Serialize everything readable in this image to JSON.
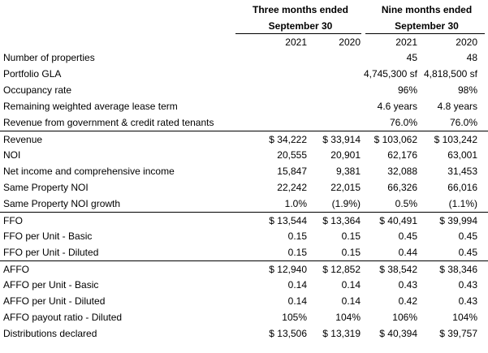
{
  "header": {
    "three_months_line1": "Three months ended",
    "three_months_line2": "September 30",
    "nine_months_line1": "Nine months ended",
    "nine_months_line2": "September 30",
    "years": [
      "2021",
      "2020",
      "2021",
      "2020"
    ]
  },
  "rows": [
    {
      "label": "Number of properties",
      "values": [
        "",
        "",
        "45",
        "48"
      ]
    },
    {
      "label": "Portfolio GLA",
      "values": [
        "",
        "",
        "4,745,300 sf",
        "4,818,500 sf"
      ]
    },
    {
      "label": "Occupancy rate",
      "values": [
        "",
        "",
        "96%",
        "98%"
      ]
    },
    {
      "label": "Remaining weighted average lease term",
      "values": [
        "",
        "",
        "4.6 years",
        "4.8 years"
      ]
    },
    {
      "label": "Revenue from government & credit rated tenants",
      "values": [
        "",
        "",
        "76.0%",
        "76.0%"
      ]
    },
    {
      "label": "Revenue",
      "values": [
        "$ 34,222",
        "$ 33,914",
        "$ 103,062",
        "$ 103,242"
      ]
    },
    {
      "label": "NOI",
      "values": [
        "20,555",
        "20,901",
        "62,176",
        "63,001"
      ]
    },
    {
      "label": "Net income and comprehensive income",
      "values": [
        "15,847",
        "9,381",
        "32,088",
        "31,453"
      ]
    },
    {
      "label": "Same Property NOI",
      "values": [
        "22,242",
        "22,015",
        "66,326",
        "66,016"
      ]
    },
    {
      "label": "Same Property NOI growth",
      "values": [
        "1.0%",
        "(1.9%)",
        "0.5%",
        "(1.1%)"
      ]
    },
    {
      "label": "FFO",
      "values": [
        "$ 13,544",
        "$ 13,364",
        "$ 40,491",
        "$ 39,994"
      ]
    },
    {
      "label": "FFO per Unit - Basic",
      "values": [
        "0.15",
        "0.15",
        "0.45",
        "0.45"
      ]
    },
    {
      "label": "FFO per Unit - Diluted",
      "values": [
        "0.15",
        "0.15",
        "0.44",
        "0.45"
      ]
    },
    {
      "label": "AFFO",
      "values": [
        "$ 12,940",
        "$ 12,852",
        "$ 38,542",
        "$ 38,346"
      ]
    },
    {
      "label": "AFFO per Unit - Basic",
      "values": [
        "0.14",
        "0.14",
        "0.43",
        "0.43"
      ]
    },
    {
      "label": "AFFO per Unit - Diluted",
      "values": [
        "0.14",
        "0.14",
        "0.42",
        "0.43"
      ]
    },
    {
      "label": "AFFO payout ratio - Diluted",
      "values": [
        "105%",
        "104%",
        "106%",
        "104%"
      ]
    },
    {
      "label": "Distributions declared",
      "values": [
        "$ 13,506",
        "$ 13,319",
        "$ 40,394",
        "$ 39,757"
      ]
    }
  ]
}
